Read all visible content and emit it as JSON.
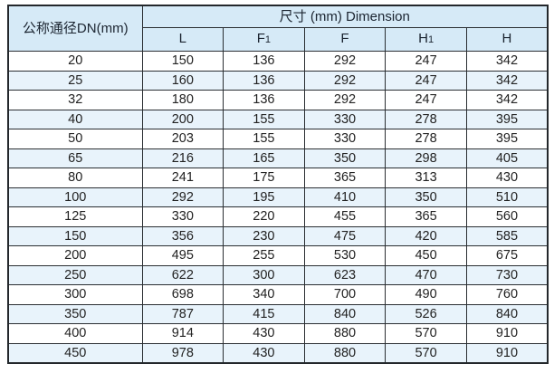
{
  "table": {
    "header": {
      "dn_label": "公称通径DN(mm)",
      "group_label": "尺寸 (mm) Dimension",
      "columns": [
        {
          "main": "L",
          "sub": ""
        },
        {
          "main": "F",
          "sub": "1"
        },
        {
          "main": "F",
          "sub": ""
        },
        {
          "main": "H",
          "sub": "1"
        },
        {
          "main": "H",
          "sub": ""
        }
      ]
    },
    "rows": [
      {
        "dn": "20",
        "values": [
          "150",
          "136",
          "292",
          "247",
          "342"
        ]
      },
      {
        "dn": "25",
        "values": [
          "160",
          "136",
          "292",
          "247",
          "342"
        ]
      },
      {
        "dn": "32",
        "values": [
          "180",
          "136",
          "292",
          "247",
          "342"
        ]
      },
      {
        "dn": "40",
        "values": [
          "200",
          "155",
          "330",
          "278",
          "395"
        ]
      },
      {
        "dn": "50",
        "values": [
          "203",
          "155",
          "330",
          "278",
          "395"
        ]
      },
      {
        "dn": "65",
        "values": [
          "216",
          "165",
          "350",
          "298",
          "405"
        ]
      },
      {
        "dn": "80",
        "values": [
          "241",
          "175",
          "365",
          "313",
          "430"
        ]
      },
      {
        "dn": "100",
        "values": [
          "292",
          "195",
          "410",
          "350",
          "510"
        ]
      },
      {
        "dn": "125",
        "values": [
          "330",
          "220",
          "455",
          "365",
          "560"
        ]
      },
      {
        "dn": "150",
        "values": [
          "356",
          "230",
          "475",
          "420",
          "585"
        ]
      },
      {
        "dn": "200",
        "values": [
          "495",
          "255",
          "530",
          "450",
          "675"
        ]
      },
      {
        "dn": "250",
        "values": [
          "622",
          "300",
          "623",
          "470",
          "730"
        ]
      },
      {
        "dn": "300",
        "values": [
          "698",
          "340",
          "700",
          "490",
          "760"
        ]
      },
      {
        "dn": "350",
        "values": [
          "787",
          "415",
          "840",
          "526",
          "840"
        ]
      },
      {
        "dn": "400",
        "values": [
          "914",
          "430",
          "880",
          "570",
          "910"
        ]
      },
      {
        "dn": "450",
        "values": [
          "978",
          "430",
          "880",
          "570",
          "910"
        ]
      }
    ]
  },
  "colors": {
    "header_bg": "#d6eaf7",
    "row_alt_bg": "#e8f3fb",
    "row_bg": "#ffffff",
    "border": "#2a2e32",
    "text": "#1b2430"
  }
}
